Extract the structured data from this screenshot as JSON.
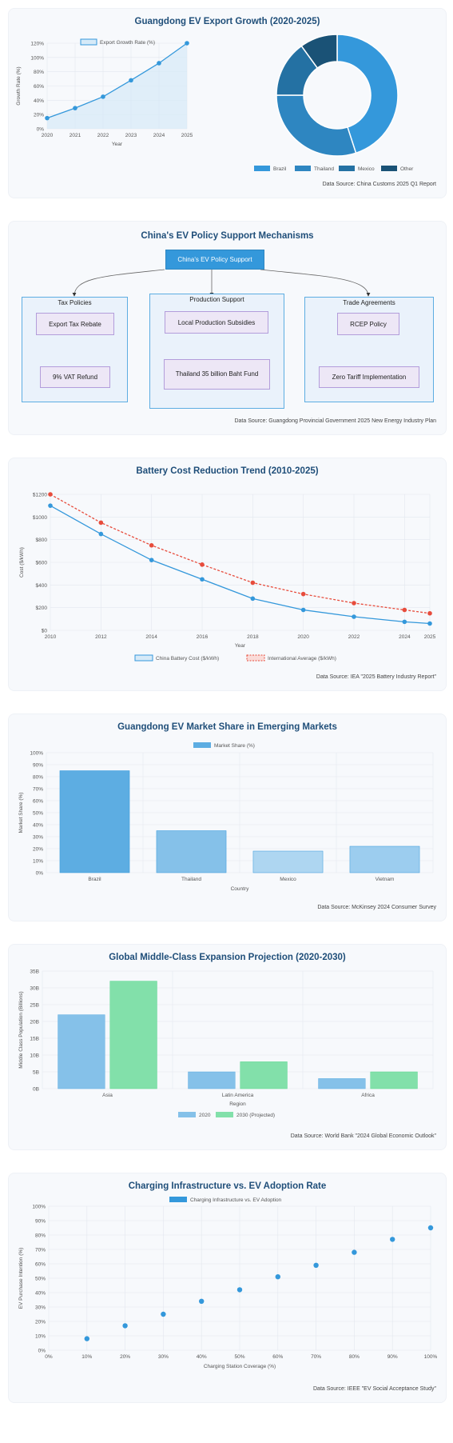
{
  "export_growth": {
    "title": "Guangdong EV Export Growth (2020-2025)",
    "source": "Data Source: China Customs 2025 Q1 Report",
    "legend_label": "Export Growth Rate (%)",
    "xlabel": "Year",
    "ylabel": "Growth Rate (%)",
    "y_ticks": [
      "0%",
      "20%",
      "40%",
      "60%",
      "80%",
      "100%",
      "120%"
    ]
  },
  "policy": {
    "title": "China's EV Policy Support Mechanisms",
    "source": "Data Source: Guangdong Provincial Government 2025 New Energy Industry Plan",
    "root": "China's EV Policy Support",
    "groups": [
      {
        "title": "Tax Policies",
        "top": "Export Tax Rebate",
        "bottom": "9% VAT Refund"
      },
      {
        "title": "Production Support",
        "top": "Local Production Subsidies",
        "bottom": "Thailand 35 billion Baht Fund"
      },
      {
        "title": "Trade Agreements",
        "top": "RCEP Policy",
        "bottom": "Zero Tariff Implementation"
      }
    ]
  },
  "battery": {
    "title": "Battery Cost Reduction Trend (2010-2025)",
    "source": "Data Source: IEA \"2025 Battery Industry Report\"",
    "xlabel": "Year",
    "ylabel": "Cost ($/kWh)",
    "y_ticks": [
      "$0",
      "$200",
      "$400",
      "$600",
      "$800",
      "$1000",
      "$1200"
    ]
  },
  "market_share": {
    "title": "Guangdong EV Market Share in Emerging Markets",
    "source": "Data Source: McKinsey 2024 Consumer Survey",
    "xlabel": "Country",
    "ylabel": "Market Share (%)",
    "y_ticks": [
      "0%",
      "10%",
      "20%",
      "30%",
      "40%",
      "50%",
      "60%",
      "70%",
      "80%",
      "90%",
      "100%"
    ]
  },
  "middle_class": {
    "title": "Global Middle-Class Expansion Projection (2020-2030)",
    "source": "Data Source: World Bank \"2024 Global Economic Outlook\"",
    "xlabel": "Region",
    "ylabel": "Middle Class Population (Billions)",
    "y_ticks": [
      "0B",
      "5B",
      "10B",
      "15B",
      "20B",
      "25B",
      "30B",
      "35B"
    ]
  },
  "charging": {
    "title": "Charging Infrastructure vs. EV Adoption Rate",
    "source": "Data Source: IEEE \"EV Social Acceptance Study\"",
    "xlabel": "Charging Station Coverage (%)",
    "ylabel": "EV Purchase Intention (%)",
    "ticks": [
      "0%",
      "10%",
      "20%",
      "30%",
      "40%",
      "50%",
      "60%",
      "70%",
      "80%",
      "90%",
      "100%"
    ]
  },
  "chart_data": [
    {
      "type": "line",
      "title": "Guangdong EV Export Growth (2020-2025)",
      "xlabel": "Year",
      "ylabel": "Growth Rate (%)",
      "x": [
        "2020",
        "2021",
        "2022",
        "2023",
        "2024",
        "2025"
      ],
      "series": [
        {
          "name": "Export Growth Rate (%)",
          "values": [
            15,
            29,
            45,
            68,
            92,
            120
          ],
          "color": "#3498db"
        }
      ],
      "ylim": [
        0,
        120
      ],
      "fill": true,
      "grid": true,
      "legend": "top"
    },
    {
      "type": "pie",
      "donut": true,
      "labels": [
        "Brazil",
        "Thailand",
        "Mexico",
        "Other"
      ],
      "values": [
        45,
        30,
        15,
        10
      ],
      "colors": [
        "#3498db",
        "#2e86c1",
        "#2471a3",
        "#1a5276"
      ],
      "legend": "bottom"
    },
    {
      "type": "line",
      "title": "Battery Cost Reduction Trend (2010-2025)",
      "xlabel": "Year",
      "ylabel": "Cost ($/kWh)",
      "x": [
        "2010",
        "2012",
        "2014",
        "2016",
        "2018",
        "2020",
        "2022",
        "2024",
        "2025"
      ],
      "series": [
        {
          "name": "China Battery Cost ($/kWh)",
          "values": [
            1100,
            850,
            620,
            450,
            280,
            180,
            120,
            75,
            60
          ],
          "color": "#3498db",
          "dashed": false
        },
        {
          "name": "International Average ($/kWh)",
          "values": [
            1200,
            950,
            750,
            580,
            420,
            320,
            240,
            180,
            150
          ],
          "color": "#e74c3c",
          "dashed": true
        }
      ],
      "ylim": [
        0,
        1200
      ],
      "grid": true,
      "legend": "bottom"
    },
    {
      "type": "bar",
      "title": "Guangdong EV Market Share in Emerging Markets",
      "xlabel": "Country",
      "ylabel": "Market Share (%)",
      "categories": [
        "Brazil",
        "Thailand",
        "Mexico",
        "Vietnam"
      ],
      "series": [
        {
          "name": "Market Share (%)",
          "values": [
            85,
            35,
            18,
            22
          ]
        }
      ],
      "bar_colors": [
        "#5dade2",
        "#85c1e9",
        "#aed6f1",
        "#9ccdef"
      ],
      "ylim": [
        0,
        100
      ],
      "grid": true,
      "legend": "top"
    },
    {
      "type": "bar",
      "title": "Global Middle-Class Expansion Projection (2020-2030)",
      "xlabel": "Region",
      "ylabel": "Middle Class Population (Billions)",
      "categories": [
        "Asia",
        "Latin America",
        "Africa"
      ],
      "series": [
        {
          "name": "2020",
          "values": [
            22,
            5,
            3
          ],
          "color": "#85c1e9"
        },
        {
          "name": "2030 (Projected)",
          "values": [
            32,
            8,
            5
          ],
          "color": "#82e0aa"
        }
      ],
      "ylim": [
        0,
        35
      ],
      "grid": true,
      "legend": "bottom"
    },
    {
      "type": "scatter",
      "title": "Charging Infrastructure vs. EV Adoption Rate",
      "xlabel": "Charging Station Coverage (%)",
      "ylabel": "EV Purchase Intention (%)",
      "series": [
        {
          "name": "Charging Infrastructure vs. EV Adoption",
          "color": "#3498db",
          "points": [
            [
              10,
              8
            ],
            [
              20,
              17
            ],
            [
              30,
              25
            ],
            [
              40,
              34
            ],
            [
              50,
              42
            ],
            [
              60,
              51
            ],
            [
              70,
              59
            ],
            [
              80,
              68
            ],
            [
              90,
              77
            ],
            [
              100,
              85
            ]
          ]
        }
      ],
      "xlim": [
        0,
        100
      ],
      "ylim": [
        0,
        100
      ],
      "grid": true,
      "legend": "top"
    }
  ]
}
